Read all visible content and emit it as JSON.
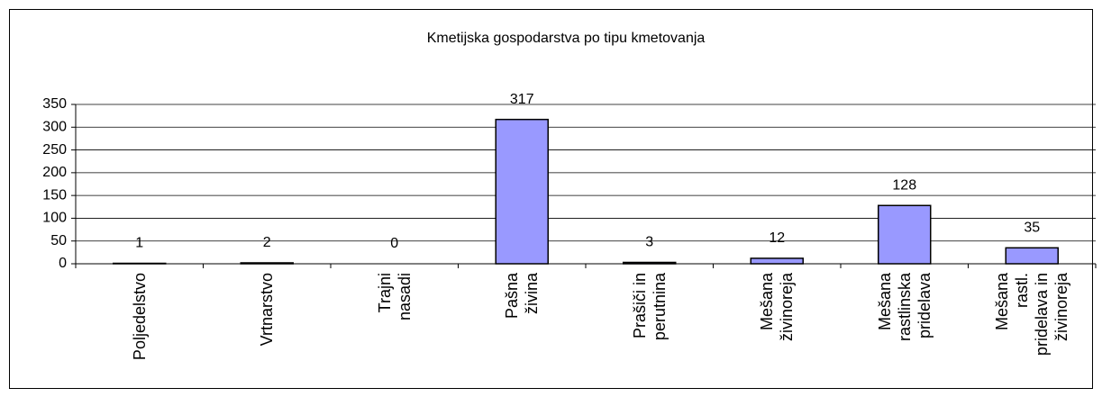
{
  "chart_data": {
    "type": "bar",
    "title": "Kmetijska gospodarstva po tipu kmetovanja",
    "categories": [
      "Poljedelstvo",
      "Vrtnarstvo",
      "Trajni nasadi",
      "Pašna živina",
      "Prašiči in perutnina",
      "Mešana živinoreja",
      "Mešana rastlinska pridelava",
      "Mešana rastl. pridelava in živinoreja"
    ],
    "values": [
      1,
      2,
      0,
      317,
      3,
      12,
      128,
      35
    ],
    "color": "#9999ff",
    "ylim": [
      0,
      350
    ],
    "yticks": [
      0,
      50,
      100,
      150,
      200,
      250,
      300,
      350
    ],
    "grid": true
  }
}
